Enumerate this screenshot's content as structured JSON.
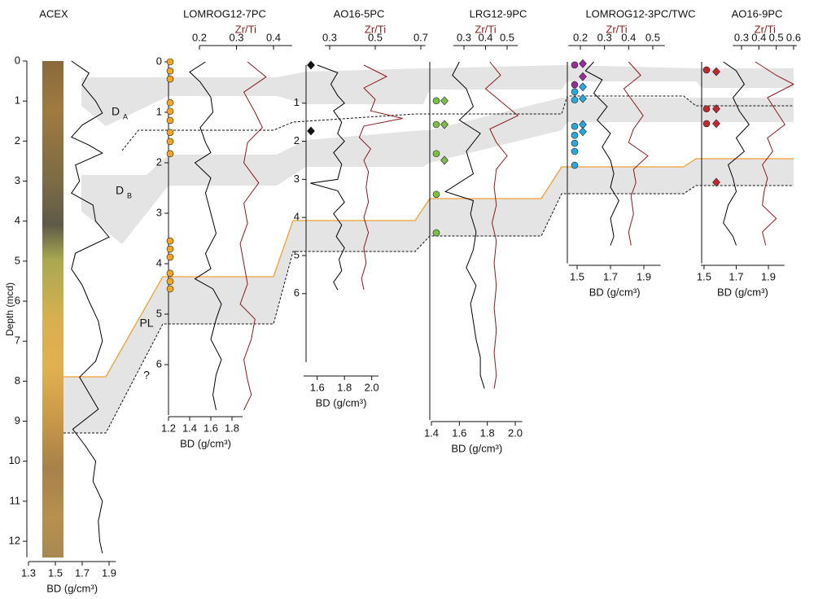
{
  "chart_data": [
    {
      "type": "line",
      "title": "ACEX",
      "ylabel": "Depth (mcd)",
      "xlabel": "BD (g/cm³)",
      "ylim": [
        0,
        12.4
      ],
      "yticks": [
        0,
        1,
        2,
        3,
        4,
        5,
        6,
        7,
        8,
        9,
        10,
        11,
        12
      ],
      "xlim": [
        1.3,
        1.95
      ],
      "xticks": [
        1.3,
        1.5,
        1.7,
        1.9
      ],
      "series": [
        {
          "color": "#000000",
          "y": [
            0,
            0.3,
            0.6,
            1.0,
            1.3,
            1.6,
            1.9,
            2.1,
            2.3,
            2.6,
            3.0,
            3.3,
            3.6,
            4.0,
            4.4,
            4.8,
            5.2,
            5.6,
            6.0,
            6.5,
            7.0,
            7.5,
            7.9,
            8.3,
            8.7,
            9.2,
            9.6,
            10.0,
            10.5,
            11.0,
            11.5,
            12.0,
            12.3
          ],
          "values": [
            1.62,
            1.75,
            1.7,
            1.8,
            1.85,
            1.7,
            1.62,
            1.75,
            1.85,
            1.65,
            1.68,
            1.62,
            1.78,
            1.8,
            1.9,
            1.65,
            1.62,
            1.7,
            1.75,
            1.82,
            1.85,
            1.8,
            1.68,
            1.75,
            1.82,
            1.63,
            1.72,
            1.8,
            1.78,
            1.85,
            1.82,
            1.83,
            1.85
          ]
        }
      ],
      "annotations": [
        {
          "text": "D",
          "sub": "A"
        },
        {
          "text": "D",
          "sub": "B"
        },
        {
          "text": "PL"
        },
        {
          "text": "?"
        }
      ]
    },
    {
      "type": "line",
      "title": "LOMROG12-7PC",
      "xlabel": "BD (g/cm³)",
      "x2label": "Zr/Ti",
      "ylim": [
        0,
        7
      ],
      "yticks": [
        0,
        1,
        2,
        3,
        4,
        5,
        6
      ],
      "xlim": [
        1.2,
        1.9
      ],
      "xticks": [
        1.2,
        1.4,
        1.6,
        1.8
      ],
      "x2lim": [
        0.2,
        0.45
      ],
      "x2ticks": [
        0.2,
        0.3,
        0.4
      ],
      "series": [
        {
          "color": "#000000",
          "y": [
            0,
            0.2,
            0.4,
            0.7,
            1.0,
            1.3,
            1.6,
            1.8,
            2.0,
            2.3,
            2.6,
            3.0,
            3.4,
            3.8,
            4.1,
            4.3,
            4.5,
            4.8,
            5.1,
            5.5,
            5.9,
            6.2,
            6.6,
            6.9
          ],
          "values": [
            1.55,
            1.4,
            1.5,
            1.6,
            1.62,
            1.5,
            1.55,
            1.6,
            1.45,
            1.6,
            1.55,
            1.6,
            1.65,
            1.55,
            1.6,
            1.45,
            1.62,
            1.7,
            1.65,
            1.6,
            1.7,
            1.65,
            1.62,
            1.65
          ]
        },
        {
          "color": "#8b1a1a",
          "axis": "x2",
          "y": [
            0,
            0.3,
            0.6,
            1.0,
            1.3,
            1.6,
            2.0,
            2.4,
            2.8,
            3.2,
            3.6,
            4.0,
            4.4,
            4.8,
            5.1,
            5.5,
            5.9,
            6.3,
            6.6,
            6.9
          ],
          "values": [
            0.33,
            0.38,
            0.32,
            0.35,
            0.37,
            0.33,
            0.32,
            0.36,
            0.32,
            0.33,
            0.31,
            0.32,
            0.33,
            0.31,
            0.35,
            0.34,
            0.32,
            0.33,
            0.34,
            0.32
          ]
        }
      ],
      "markers": [
        {
          "shape": "circle",
          "color": "#f5a623",
          "depths": [
            0,
            0.18,
            0.34,
            0.81,
            0.98,
            1.16,
            1.4,
            1.58,
            1.82,
            3.55,
            3.71,
            3.87,
            4.19,
            4.35,
            4.5
          ]
        }
      ]
    },
    {
      "type": "line",
      "title": "AO16-5PC",
      "xlabel": "BD (g/cm³)",
      "x2label": "Zr/Ti",
      "ylim": [
        0,
        7.8
      ],
      "yticks": [
        1,
        2,
        3,
        4,
        5,
        6
      ],
      "xlim": [
        1.5,
        2.05
      ],
      "xticks": [
        1.6,
        1.8,
        {
          "value": 2,
          "label": "2.0"
        }
      ],
      "x2lim": [
        0.28,
        0.72
      ],
      "x2ticks": [
        0.3,
        0.5,
        0.7
      ],
      "series": [
        {
          "color": "#000000",
          "y": [
            0,
            0.2,
            0.5,
            0.8,
            1.0,
            1.2,
            1.5,
            1.8,
            2.0,
            2.3,
            2.6,
            3.0,
            3.1,
            3.3,
            3.6,
            3.9,
            4.2,
            4.5,
            4.8,
            5.1,
            5.4,
            5.7,
            5.9
          ],
          "values": [
            1.6,
            1.75,
            1.7,
            1.75,
            1.8,
            1.72,
            1.78,
            1.75,
            1.8,
            1.72,
            1.78,
            1.75,
            1.55,
            1.75,
            1.8,
            1.72,
            1.78,
            1.74,
            1.8,
            1.76,
            1.78,
            1.72,
            1.75
          ]
        },
        {
          "color": "#8b1a1a",
          "axis": "x2",
          "y": [
            0,
            0.3,
            0.6,
            0.9,
            1.2,
            1.4,
            1.6,
            1.9,
            2.2,
            2.5,
            2.8,
            3.2,
            3.6,
            4.0,
            4.4,
            4.8,
            5.2,
            5.6,
            5.9
          ],
          "values": [
            0.45,
            0.55,
            0.45,
            0.5,
            0.48,
            0.62,
            0.45,
            0.43,
            0.48,
            0.45,
            0.47,
            0.46,
            0.47,
            0.45,
            0.47,
            0.45,
            0.46,
            0.44,
            0.45
          ]
        }
      ],
      "markers": [
        {
          "shape": "diamond",
          "color": "#111111",
          "depths": [
            0,
            1.73
          ]
        }
      ]
    },
    {
      "type": "line",
      "title": "LRG12-9PC",
      "xlabel": "BD (g/cm³)",
      "x2label": "Zr/Ti",
      "ylim": [
        0,
        8
      ],
      "xlim": [
        1.4,
        2.05
      ],
      "xticks": [
        1.4,
        1.6,
        1.8,
        {
          "value": 2,
          "label": "2.0"
        }
      ],
      "x2lim": [
        0.25,
        0.55
      ],
      "x2ticks": [
        0.3,
        0.4,
        0.5
      ],
      "series": [
        {
          "color": "#000000",
          "y": [
            0,
            0.3,
            0.6,
            1.0,
            1.3,
            1.6,
            2.0,
            2.5,
            2.9,
            3.1,
            3.4,
            3.8,
            4.2,
            4.6,
            5.0,
            5.4,
            5.8,
            6.2,
            6.6,
            7.0,
            7.3
          ],
          "values": [
            1.6,
            1.55,
            1.65,
            1.7,
            1.6,
            1.75,
            1.65,
            1.7,
            1.5,
            1.7,
            1.68,
            1.72,
            1.7,
            1.65,
            1.72,
            1.68,
            1.7,
            1.72,
            1.75,
            1.75,
            1.78
          ]
        },
        {
          "color": "#8b1a1a",
          "axis": "x2",
          "y": [
            0,
            0.3,
            0.6,
            1.0,
            1.2,
            1.5,
            1.8,
            2.1,
            2.4,
            2.8,
            3.2,
            3.6,
            4.0,
            4.5,
            5.0,
            5.5,
            6.0,
            6.5,
            7.0,
            7.3
          ],
          "values": [
            0.42,
            0.47,
            0.4,
            0.5,
            0.55,
            0.42,
            0.45,
            0.5,
            0.45,
            0.44,
            0.45,
            0.43,
            0.45,
            0.44,
            0.45,
            0.44,
            0.45,
            0.44,
            0.45,
            0.44
          ]
        }
      ],
      "markers": [
        {
          "shape": "circle",
          "color": "#7ac143",
          "depths": [
            0.87,
            1.4,
            2.05,
            2.96,
            3.82
          ]
        },
        {
          "shape": "diamond",
          "color": "#7ac143",
          "depths": [
            0.87,
            1.4,
            2.2
          ]
        }
      ]
    },
    {
      "type": "line",
      "title": "LOMROG12-3PC/TWC",
      "xlabel": "BD (g/cm³)",
      "x2label": "Zr/Ti",
      "ylim": [
        0,
        4.5
      ],
      "xlim": [
        1.45,
        2.0
      ],
      "xticks": [
        1.5,
        1.7,
        1.9
      ],
      "x2lim": [
        0.15,
        0.55
      ],
      "x2ticks": [
        0.2,
        0.3,
        0.4,
        0.5
      ],
      "series": [
        {
          "color": "#000000",
          "y": [
            0,
            0.2,
            0.4,
            0.7,
            1.0,
            1.3,
            1.6,
            1.9,
            2.2,
            2.5,
            2.8,
            3.1,
            3.5,
            3.9,
            4.1
          ],
          "values": [
            1.6,
            1.55,
            1.65,
            1.6,
            1.68,
            1.62,
            1.7,
            1.65,
            1.7,
            1.72,
            1.7,
            1.75,
            1.7,
            1.72,
            1.7
          ]
        },
        {
          "color": "#8b1a1a",
          "axis": "x2",
          "y": [
            0,
            0.3,
            0.6,
            0.9,
            1.2,
            1.5,
            1.8,
            2.1,
            2.4,
            2.7,
            3.0,
            3.4,
            3.8,
            4.1
          ],
          "values": [
            0.4,
            0.45,
            0.38,
            0.42,
            0.46,
            0.42,
            0.4,
            0.48,
            0.42,
            0.43,
            0.41,
            0.42,
            0.4,
            0.41
          ]
        }
      ],
      "markers": [
        {
          "shape": "circle",
          "color": "#9b2d9b",
          "depths": [
            0.07,
            0.51
          ]
        },
        {
          "shape": "diamond",
          "color": "#9b2d9b",
          "depths": [
            0.04,
            0.33
          ]
        },
        {
          "shape": "circle",
          "color": "#29a8e0",
          "depths": [
            0.67,
            0.85,
            1.44,
            1.64,
            1.82,
            2.0,
            2.31
          ]
        },
        {
          "shape": "diamond",
          "color": "#29a8e0",
          "depths": [
            0.56,
            0.82,
            1.4,
            1.56
          ]
        }
      ]
    },
    {
      "type": "line",
      "title": "AO16-9PC",
      "xlabel": "BD (g/cm³)",
      "x2label": "Zr/Ti",
      "ylim": [
        0,
        4.5
      ],
      "xlim": [
        1.48,
        2.0
      ],
      "xticks": [
        1.5,
        1.7,
        1.9
      ],
      "x2lim": [
        0.25,
        0.62
      ],
      "x2ticks": [
        0.3,
        0.4,
        0.5,
        0.6
      ],
      "series": [
        {
          "color": "#000000",
          "y": [
            0,
            0.2,
            0.5,
            0.8,
            1.1,
            1.4,
            1.7,
            2.0,
            2.3,
            2.6,
            2.9,
            3.2,
            3.6,
            3.9,
            4.1
          ],
          "values": [
            1.62,
            1.7,
            1.75,
            1.68,
            1.72,
            1.78,
            1.7,
            1.75,
            1.65,
            1.68,
            1.7,
            1.65,
            1.62,
            1.68,
            1.7
          ]
        },
        {
          "color": "#8b1a1a",
          "axis": "x2",
          "y": [
            0,
            0.3,
            0.5,
            0.8,
            1.1,
            1.4,
            1.7,
            2.0,
            2.3,
            2.6,
            2.9,
            3.2,
            3.5,
            3.8,
            4.1
          ],
          "values": [
            0.38,
            0.5,
            0.6,
            0.45,
            0.5,
            0.55,
            0.45,
            0.48,
            0.42,
            0.45,
            0.43,
            0.42,
            0.5,
            0.42,
            0.44
          ]
        }
      ],
      "markers": [
        {
          "shape": "circle",
          "color": "#c1272d",
          "depths": [
            0.18,
            1.05,
            1.38
          ]
        },
        {
          "shape": "diamond",
          "color": "#c1272d",
          "depths": [
            0.22,
            1.05,
            1.38,
            2.69
          ]
        }
      ]
    }
  ]
}
